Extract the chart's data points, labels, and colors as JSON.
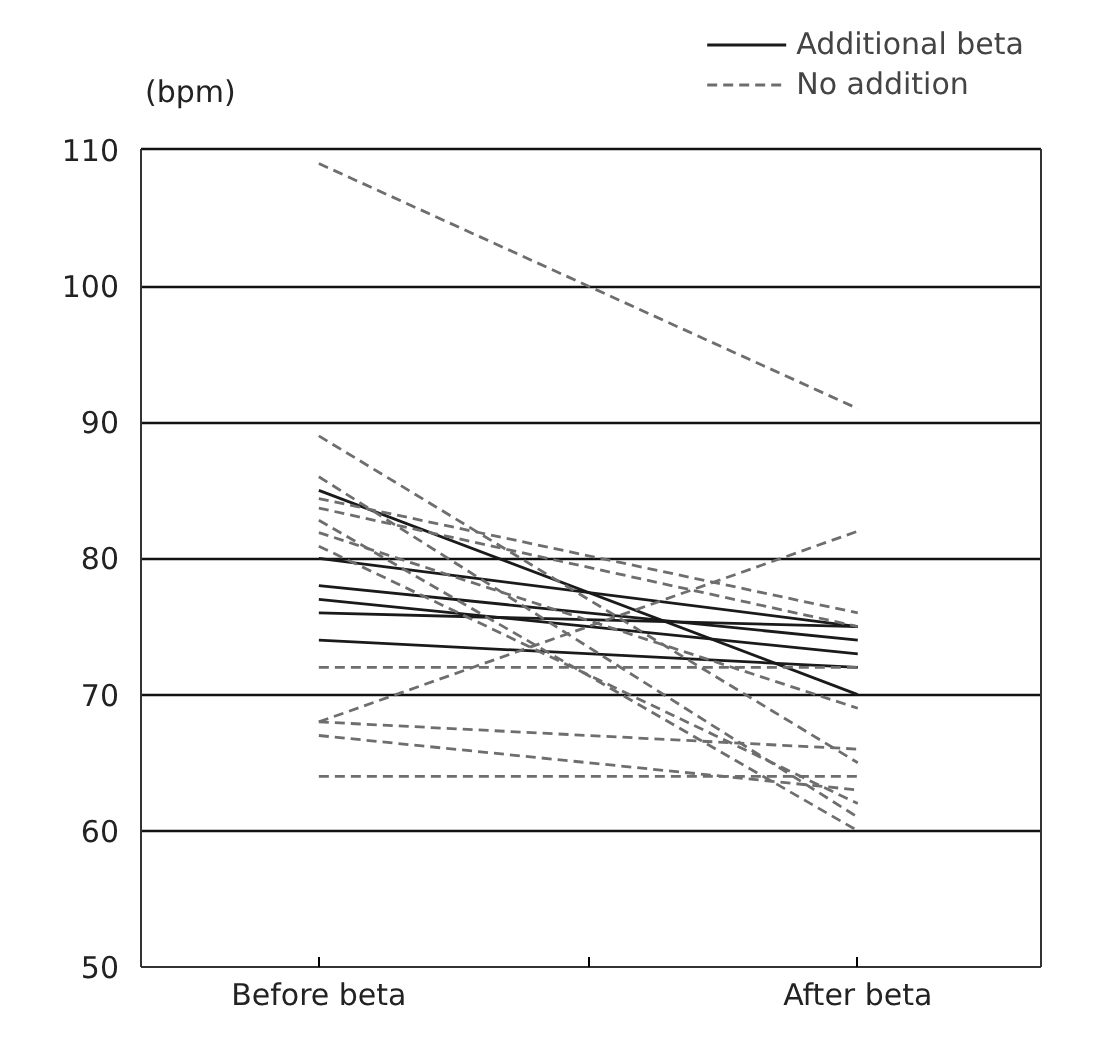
{
  "chart_data": {
    "type": "line",
    "ylabel": "(bpm)",
    "categories": [
      "Before beta",
      "After beta"
    ],
    "ylim": [
      50,
      110
    ],
    "yticks": [
      50,
      60,
      70,
      80,
      90,
      100,
      110
    ],
    "grid": "y",
    "legend": "top right",
    "series": [
      {
        "name": "Additional beta",
        "color": "#1a1a1a",
        "line_style": "solid",
        "values": [
          85,
          70
        ]
      },
      {
        "color": "#1a1a1a",
        "line_style": "solid",
        "values": [
          80,
          75
        ]
      },
      {
        "color": "#1a1a1a",
        "line_style": "solid",
        "values": [
          78,
          74
        ]
      },
      {
        "color": "#1a1a1a",
        "line_style": "solid",
        "values": [
          77,
          73
        ]
      },
      {
        "color": "#1a1a1a",
        "line_style": "solid",
        "values": [
          76,
          75
        ]
      },
      {
        "color": "#1a1a1a",
        "line_style": "solid",
        "values": [
          74,
          72
        ]
      },
      {
        "name": "No addition",
        "color": "#6e6e6e",
        "line_style": "dashed",
        "values": [
          109,
          91
        ]
      },
      {
        "color": "#6e6e6e",
        "line_style": "dashed",
        "values": [
          89,
          65
        ]
      },
      {
        "color": "#6e6e6e",
        "line_style": "dashed",
        "values": [
          86,
          61
        ]
      },
      {
        "color": "#6e6e6e",
        "line_style": "dashed",
        "values": [
          84.4,
          76
        ]
      },
      {
        "color": "#6e6e6e",
        "line_style": "dashed",
        "values": [
          83.7,
          75
        ]
      },
      {
        "color": "#6e6e6e",
        "line_style": "dashed",
        "values": [
          82.8,
          60
        ]
      },
      {
        "color": "#6e6e6e",
        "line_style": "dashed",
        "values": [
          81.9,
          69
        ]
      },
      {
        "color": "#6e6e6e",
        "line_style": "dashed",
        "values": [
          80.9,
          62
        ]
      },
      {
        "color": "#6e6e6e",
        "line_style": "dashed",
        "values": [
          72,
          72
        ]
      },
      {
        "color": "#6e6e6e",
        "line_style": "dashed",
        "values": [
          68,
          82
        ]
      },
      {
        "color": "#6e6e6e",
        "line_style": "dashed",
        "values": [
          68,
          66
        ]
      },
      {
        "color": "#6e6e6e",
        "line_style": "dashed",
        "values": [
          67,
          63
        ]
      },
      {
        "color": "#6e6e6e",
        "line_style": "dashed",
        "values": [
          64,
          64
        ]
      }
    ]
  }
}
